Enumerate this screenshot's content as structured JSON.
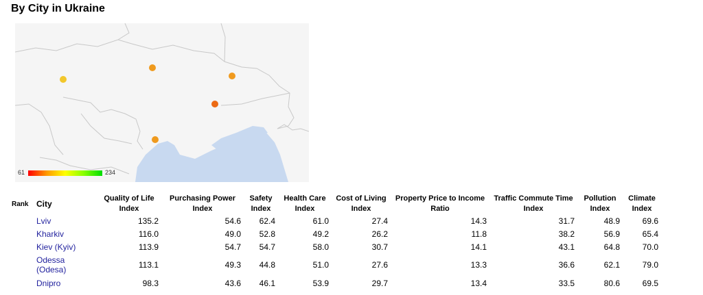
{
  "page": {
    "title": "By City in Ukraine"
  },
  "map": {
    "legend": {
      "min": "61",
      "max": "234",
      "gradient": [
        "#ff0000",
        "#ff9900",
        "#ffff00",
        "#88ff00",
        "#00dd00"
      ]
    },
    "land_color": "#f5f5f5",
    "water_color": "#c8d9f0",
    "border_color": "#cccccc",
    "markers": [
      {
        "city": "Lviv",
        "color": "#f2c72c"
      },
      {
        "city": "Kiev (Kyiv)",
        "color": "#ef9a1e"
      },
      {
        "city": "Kharkiv",
        "color": "#f09a1e"
      },
      {
        "city": "Dnipro",
        "color": "#ec6a14"
      },
      {
        "city": "Odessa (Odesa)",
        "color": "#ef9a1e"
      }
    ]
  },
  "table": {
    "headers": {
      "rank": "Rank",
      "city": "City",
      "qol_1": "Quality of Life",
      "qol_2": "Index",
      "pp_1": "Purchasing Power",
      "pp_2": "Index",
      "safety_1": "Safety",
      "safety_2": "Index",
      "health_1": "Health Care",
      "health_2": "Index",
      "col_1": "Cost of Living",
      "col_2": "Index",
      "ppi_1": "Property Price to Income",
      "ppi_2": "Ratio",
      "traffic_1": "Traffic Commute Time",
      "traffic_2": "Index",
      "pollution_1": "Pollution",
      "pollution_2": "Index",
      "climate_1": "Climate",
      "climate_2": "Index"
    },
    "rows": [
      {
        "city_1": "Lviv",
        "city_2": "",
        "qol": "135.2",
        "pp": "54.6",
        "safety": "62.4",
        "health": "61.0",
        "col": "27.4",
        "ppi": "14.3",
        "traffic": "31.7",
        "pollution": "48.9",
        "climate": "69.6"
      },
      {
        "city_1": "Kharkiv",
        "city_2": "",
        "qol": "116.0",
        "pp": "49.0",
        "safety": "52.8",
        "health": "49.2",
        "col": "26.2",
        "ppi": "11.8",
        "traffic": "38.2",
        "pollution": "56.9",
        "climate": "65.4"
      },
      {
        "city_1": "Kiev (Kyiv)",
        "city_2": "",
        "qol": "113.9",
        "pp": "54.7",
        "safety": "54.7",
        "health": "58.0",
        "col": "30.7",
        "ppi": "14.1",
        "traffic": "43.1",
        "pollution": "64.8",
        "climate": "70.0"
      },
      {
        "city_1": "Odessa",
        "city_2": "(Odesa)",
        "qol": "113.1",
        "pp": "49.3",
        "safety": "44.8",
        "health": "51.0",
        "col": "27.6",
        "ppi": "13.3",
        "traffic": "36.6",
        "pollution": "62.1",
        "climate": "79.0"
      },
      {
        "city_1": "Dnipro",
        "city_2": "",
        "qol": "98.3",
        "pp": "43.6",
        "safety": "46.1",
        "health": "53.9",
        "col": "29.7",
        "ppi": "13.4",
        "traffic": "33.5",
        "pollution": "80.6",
        "climate": "69.5"
      }
    ]
  }
}
